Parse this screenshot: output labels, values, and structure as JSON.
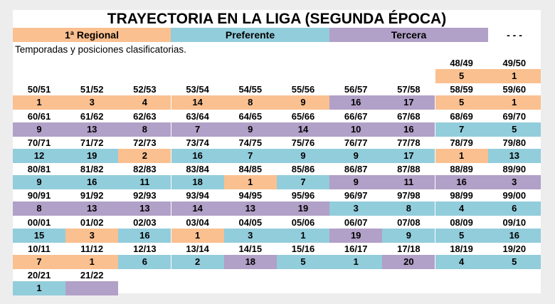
{
  "title": "TRAYECTORIA EN LA LIGA (SEGUNDA ÉPOCA)",
  "legend": [
    {
      "label": "1ª Regional",
      "color": "#fac090"
    },
    {
      "label": "Preferente",
      "color": "#92cddc"
    },
    {
      "label": "Tercera",
      "color": "#b1a0c7"
    },
    {
      "label": "- - -",
      "color": "#ffffff"
    }
  ],
  "subtitle": "Temporadas y posiciones clasificatorias.",
  "level_colors": {
    "R": "#fac090",
    "P": "#92cddc",
    "T": "#b1a0c7"
  },
  "rows": [
    {
      "start_col": 8,
      "seasons": [
        {
          "season": "48/49",
          "position": "5",
          "level": "R"
        },
        {
          "season": "49/50",
          "position": "1",
          "level": "R"
        }
      ]
    },
    {
      "start_col": 0,
      "seasons": [
        {
          "season": "50/51",
          "position": "1",
          "level": "R"
        },
        {
          "season": "51/52",
          "position": "3",
          "level": "R"
        },
        {
          "season": "52/53",
          "position": "4",
          "level": "R"
        },
        {
          "season": "53/54",
          "position": "14",
          "level": "R"
        },
        {
          "season": "54/55",
          "position": "8",
          "level": "R"
        },
        {
          "season": "55/56",
          "position": "9",
          "level": "R"
        },
        {
          "season": "56/57",
          "position": "16",
          "level": "T"
        },
        {
          "season": "57/58",
          "position": "17",
          "level": "T"
        },
        {
          "season": "58/59",
          "position": "5",
          "level": "R"
        },
        {
          "season": "59/60",
          "position": "1",
          "level": "R"
        }
      ]
    },
    {
      "start_col": 0,
      "seasons": [
        {
          "season": "60/61",
          "position": "9",
          "level": "T"
        },
        {
          "season": "61/62",
          "position": "13",
          "level": "T"
        },
        {
          "season": "62/63",
          "position": "8",
          "level": "T"
        },
        {
          "season": "63/64",
          "position": "7",
          "level": "T"
        },
        {
          "season": "64/65",
          "position": "9",
          "level": "T"
        },
        {
          "season": "65/66",
          "position": "14",
          "level": "T"
        },
        {
          "season": "66/67",
          "position": "10",
          "level": "T"
        },
        {
          "season": "67/68",
          "position": "16",
          "level": "T"
        },
        {
          "season": "68/69",
          "position": "7",
          "level": "P"
        },
        {
          "season": "69/70",
          "position": "5",
          "level": "P"
        }
      ]
    },
    {
      "start_col": 0,
      "seasons": [
        {
          "season": "70/71",
          "position": "12",
          "level": "P"
        },
        {
          "season": "71/72",
          "position": "19",
          "level": "P"
        },
        {
          "season": "72/73",
          "position": "2",
          "level": "R"
        },
        {
          "season": "73/74",
          "position": "16",
          "level": "P"
        },
        {
          "season": "74/75",
          "position": "7",
          "level": "P"
        },
        {
          "season": "75/76",
          "position": "9",
          "level": "P"
        },
        {
          "season": "76/77",
          "position": "9",
          "level": "P"
        },
        {
          "season": "77/78",
          "position": "17",
          "level": "P"
        },
        {
          "season": "78/79",
          "position": "1",
          "level": "R"
        },
        {
          "season": "79/80",
          "position": "13",
          "level": "P"
        }
      ]
    },
    {
      "start_col": 0,
      "seasons": [
        {
          "season": "80/81",
          "position": "9",
          "level": "P"
        },
        {
          "season": "81/82",
          "position": "16",
          "level": "P"
        },
        {
          "season": "82/83",
          "position": "11",
          "level": "P"
        },
        {
          "season": "83/84",
          "position": "18",
          "level": "P"
        },
        {
          "season": "84/85",
          "position": "1",
          "level": "R"
        },
        {
          "season": "85/86",
          "position": "7",
          "level": "P"
        },
        {
          "season": "86/87",
          "position": "9",
          "level": "T"
        },
        {
          "season": "87/88",
          "position": "11",
          "level": "T"
        },
        {
          "season": "88/89",
          "position": "16",
          "level": "T"
        },
        {
          "season": "89/90",
          "position": "3",
          "level": "T"
        }
      ]
    },
    {
      "start_col": 0,
      "seasons": [
        {
          "season": "90/91",
          "position": "8",
          "level": "T"
        },
        {
          "season": "91/92",
          "position": "13",
          "level": "T"
        },
        {
          "season": "92/93",
          "position": "13",
          "level": "T"
        },
        {
          "season": "93/94",
          "position": "14",
          "level": "T"
        },
        {
          "season": "94/95",
          "position": "13",
          "level": "T"
        },
        {
          "season": "95/96",
          "position": "19",
          "level": "T"
        },
        {
          "season": "96/97",
          "position": "3",
          "level": "P"
        },
        {
          "season": "97/98",
          "position": "8",
          "level": "P"
        },
        {
          "season": "98/99",
          "position": "4",
          "level": "P"
        },
        {
          "season": "99/00",
          "position": "6",
          "level": "P"
        }
      ]
    },
    {
      "start_col": 0,
      "seasons": [
        {
          "season": "00/01",
          "position": "15",
          "level": "P"
        },
        {
          "season": "01/02",
          "position": "3",
          "level": "R"
        },
        {
          "season": "02/03",
          "position": "16",
          "level": "P"
        },
        {
          "season": "03/04",
          "position": "1",
          "level": "R"
        },
        {
          "season": "04/05",
          "position": "3",
          "level": "P"
        },
        {
          "season": "05/06",
          "position": "1",
          "level": "P"
        },
        {
          "season": "06/07",
          "position": "19",
          "level": "T"
        },
        {
          "season": "07/08",
          "position": "9",
          "level": "P"
        },
        {
          "season": "08/09",
          "position": "5",
          "level": "P"
        },
        {
          "season": "09/10",
          "position": "16",
          "level": "P"
        }
      ]
    },
    {
      "start_col": 0,
      "seasons": [
        {
          "season": "10/11",
          "position": "7",
          "level": "R"
        },
        {
          "season": "11/12",
          "position": "1",
          "level": "R"
        },
        {
          "season": "12/13",
          "position": "6",
          "level": "P"
        },
        {
          "season": "13/14",
          "position": "2",
          "level": "P"
        },
        {
          "season": "14/15",
          "position": "18",
          "level": "T"
        },
        {
          "season": "15/16",
          "position": "5",
          "level": "P"
        },
        {
          "season": "16/17",
          "position": "1",
          "level": "P"
        },
        {
          "season": "17/18",
          "position": "20",
          "level": "T"
        },
        {
          "season": "18/19",
          "position": "4",
          "level": "P"
        },
        {
          "season": "19/20",
          "position": "5",
          "level": "P"
        }
      ]
    },
    {
      "start_col": 0,
      "seasons": [
        {
          "season": "20/21",
          "position": "1",
          "level": "P"
        },
        {
          "season": "21/22",
          "position": "",
          "level": "T"
        }
      ]
    }
  ]
}
